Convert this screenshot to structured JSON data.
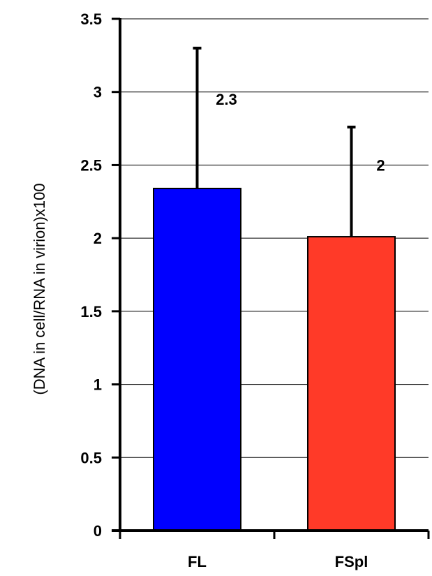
{
  "chart_data": {
    "type": "bar",
    "title": "",
    "xlabel": "",
    "ylabel": "(DNA in cell/RNA in virion)x100",
    "categories": [
      "FL",
      "FSpl"
    ],
    "values": [
      2.34,
      2.01
    ],
    "error_upper": [
      3.3,
      2.76
    ],
    "data_labels": [
      "2.3",
      "2"
    ],
    "colors": [
      "#0000ff",
      "#ff3a28"
    ],
    "ylim": [
      0,
      3.5
    ],
    "yticks": [
      0,
      0.5,
      1,
      1.5,
      2,
      2.5,
      3,
      3.5
    ],
    "ytick_labels": [
      "0",
      "0.5",
      "1",
      "1.5",
      "2",
      "2.5",
      "3",
      "3.5"
    ],
    "grid": true,
    "legend": "none"
  }
}
